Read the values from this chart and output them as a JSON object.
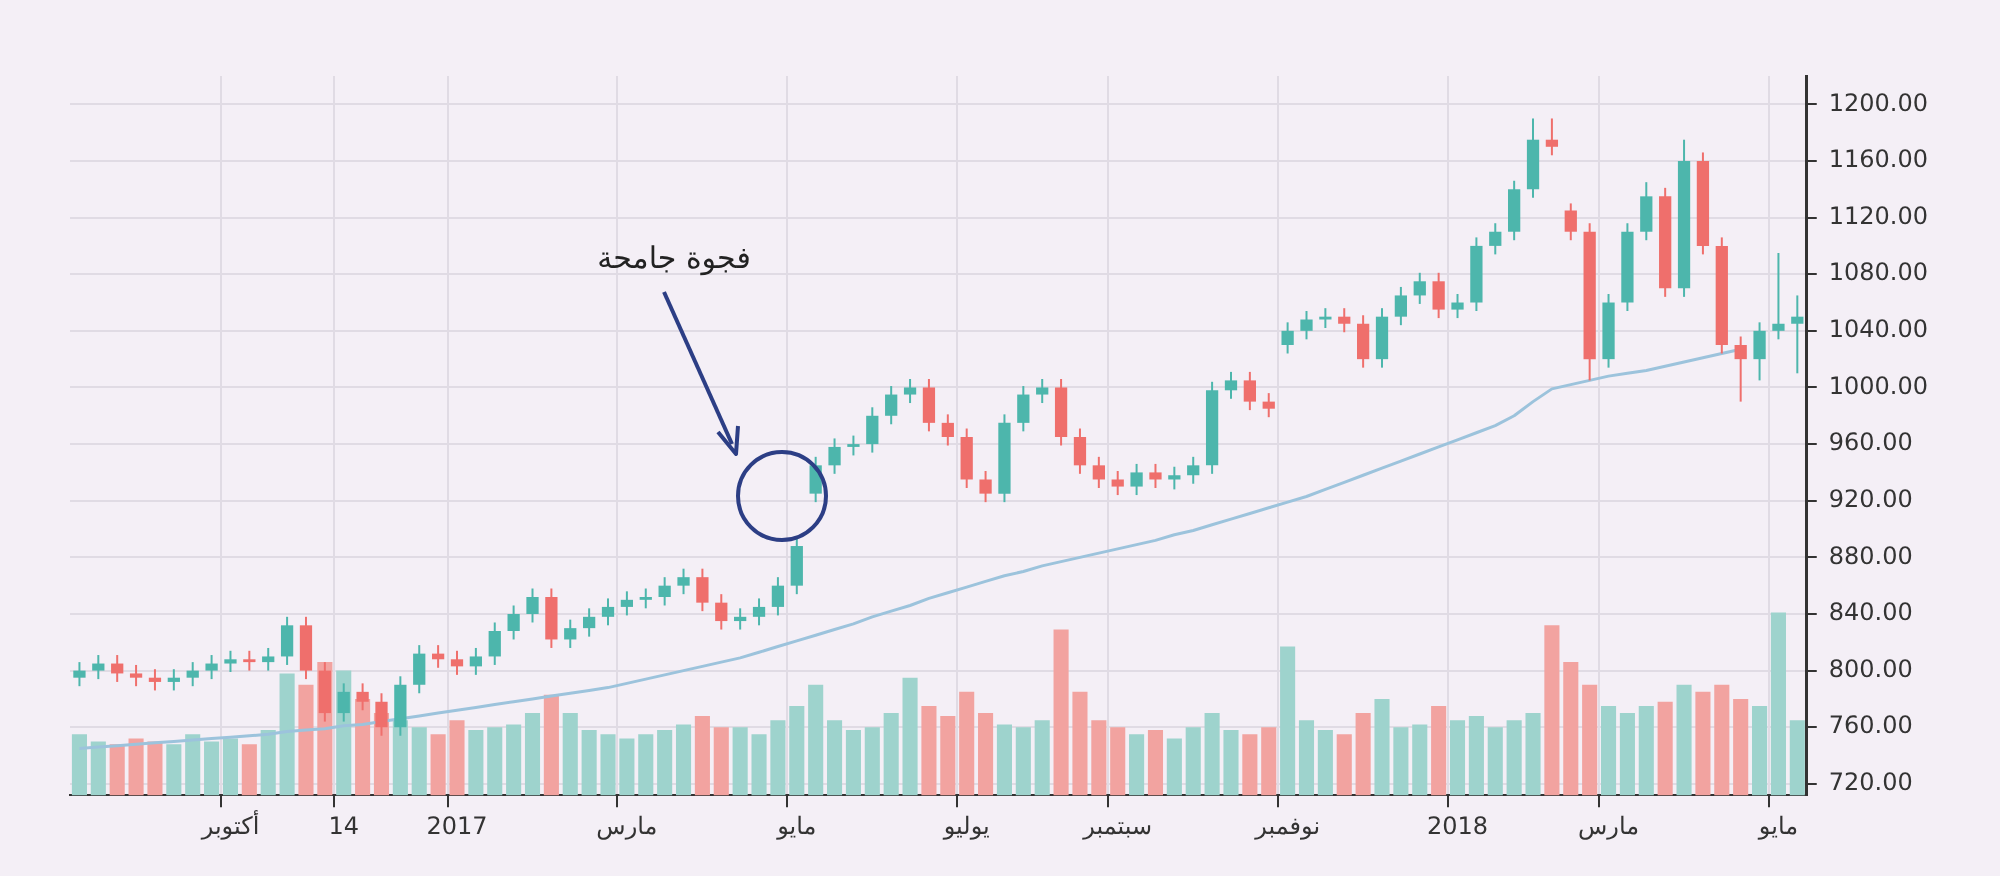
{
  "chart_data": {
    "type": "candlestick",
    "categories": [
      null,
      null,
      null,
      null,
      null,
      null,
      null,
      null,
      "أكتوبر",
      null,
      null,
      null,
      null,
      null,
      "14",
      null,
      null,
      null,
      null,
      null,
      "2017",
      null,
      null,
      null,
      null,
      null,
      null,
      null,
      null,
      "مارس",
      null,
      null,
      null,
      null,
      null,
      null,
      null,
      null,
      "مايو",
      null,
      null,
      null,
      null,
      null,
      null,
      null,
      null,
      "يوليو",
      null,
      null,
      null,
      null,
      null,
      null,
      null,
      "سبتمبر",
      null,
      null,
      null,
      null,
      null,
      null,
      null,
      null,
      "نوفمبر",
      null,
      null,
      null,
      null,
      null,
      null,
      null,
      null,
      "2018",
      null,
      null,
      null,
      null,
      null,
      null,
      null,
      "مارس",
      null,
      null,
      null,
      null,
      null,
      null,
      null,
      null,
      "مايو",
      null
    ],
    "ylim": [
      712,
      1220
    ],
    "yticks": [
      {
        "value": 720,
        "label": "720.00"
      },
      {
        "value": 760,
        "label": "760.00"
      },
      {
        "value": 800,
        "label": "800.00"
      },
      {
        "value": 840,
        "label": "840.00"
      },
      {
        "value": 880,
        "label": "880.00"
      },
      {
        "value": 920,
        "label": "920.00"
      },
      {
        "value": 960,
        "label": "960.00"
      },
      {
        "value": 1000,
        "label": "1000.00"
      },
      {
        "value": 1040,
        "label": "1040.00"
      },
      {
        "value": 1080,
        "label": "1080.00"
      },
      {
        "value": 1120,
        "label": "1120.00"
      },
      {
        "value": 1160,
        "label": "1160.00"
      },
      {
        "value": 1200,
        "label": "1200.00"
      }
    ],
    "grid": true,
    "legend": false,
    "annotations": [
      "فجوة جامحة"
    ],
    "series": [
      {
        "type": "bar",
        "colors": [
          "#9ed3cd",
          "#9ed3cd",
          "#f2a3a0",
          "#f2a3a0",
          "#f2a3a0",
          "#9ed3cd",
          "#9ed3cd",
          "#9ed3cd",
          "#9ed3cd",
          "#f2a3a0",
          "#9ed3cd",
          "#9ed3cd",
          "#f2a3a0",
          "#f2a3a0",
          "#9ed3cd",
          "#f2a3a0",
          "#f2a3a0",
          "#9ed3cd",
          "#9ed3cd",
          "#f2a3a0",
          "#f2a3a0",
          "#9ed3cd",
          "#9ed3cd",
          "#9ed3cd",
          "#9ed3cd",
          "#f2a3a0",
          "#9ed3cd",
          "#9ed3cd",
          "#9ed3cd",
          "#9ed3cd",
          "#9ed3cd",
          "#9ed3cd",
          "#9ed3cd",
          "#f2a3a0",
          "#f2a3a0",
          "#9ed3cd",
          "#9ed3cd",
          "#9ed3cd",
          "#9ed3cd",
          "#9ed3cd",
          "#9ed3cd",
          "#9ed3cd",
          "#9ed3cd",
          "#9ed3cd",
          "#9ed3cd",
          "#f2a3a0",
          "#f2a3a0",
          "#f2a3a0",
          "#f2a3a0",
          "#9ed3cd",
          "#9ed3cd",
          "#9ed3cd",
          "#f2a3a0",
          "#f2a3a0",
          "#f2a3a0",
          "#f2a3a0",
          "#9ed3cd",
          "#f2a3a0",
          "#9ed3cd",
          "#9ed3cd",
          "#9ed3cd",
          "#9ed3cd",
          "#f2a3a0",
          "#f2a3a0",
          "#9ed3cd",
          "#9ed3cd",
          "#9ed3cd",
          "#f2a3a0",
          "#f2a3a0",
          "#9ed3cd",
          "#9ed3cd",
          "#9ed3cd",
          "#f2a3a0",
          "#9ed3cd",
          "#9ed3cd",
          "#9ed3cd",
          "#9ed3cd",
          "#9ed3cd",
          "#f2a3a0",
          "#f2a3a0",
          "#f2a3a0",
          "#9ed3cd",
          "#9ed3cd",
          "#9ed3cd",
          "#f2a3a0",
          "#9ed3cd",
          "#f2a3a0",
          "#f2a3a0",
          "#f2a3a0",
          "#9ed3cd",
          "#9ed3cd",
          "#9ed3cd"
        ],
        "values": [
          755,
          750,
          748,
          752,
          750,
          748,
          755,
          750,
          752,
          748,
          758,
          798,
          790,
          806,
          800,
          780,
          770,
          765,
          760,
          755,
          765,
          758,
          760,
          762,
          770,
          783,
          770,
          758,
          755,
          752,
          755,
          758,
          762,
          768,
          760,
          760,
          755,
          765,
          775,
          790,
          765,
          758,
          760,
          770,
          795,
          775,
          768,
          785,
          770,
          762,
          760,
          765,
          829,
          785,
          765,
          760,
          755,
          758,
          752,
          760,
          770,
          758,
          755,
          760,
          817,
          765,
          758,
          755,
          770,
          780,
          760,
          762,
          775,
          765,
          768,
          760,
          765,
          770,
          832,
          806,
          790,
          775,
          770,
          775,
          778,
          790,
          785,
          790,
          780,
          775,
          841,
          765
        ]
      },
      {
        "type": "line",
        "color": "#9cc3dc",
        "values": [
          745,
          746,
          747,
          748,
          749,
          750,
          751,
          752,
          753,
          754,
          755,
          757,
          758,
          759,
          761,
          762,
          764,
          766,
          768,
          770,
          772,
          774,
          776,
          778,
          780,
          782,
          784,
          786,
          788,
          791,
          794,
          797,
          800,
          803,
          806,
          809,
          813,
          817,
          821,
          825,
          829,
          833,
          838,
          842,
          846,
          851,
          855,
          859,
          863,
          867,
          870,
          874,
          877,
          880,
          883,
          886,
          889,
          892,
          896,
          899,
          903,
          907,
          911,
          915,
          919,
          923,
          928,
          933,
          938,
          943,
          948,
          953,
          958,
          963,
          968,
          973,
          980,
          990,
          999,
          1002,
          1005,
          1008,
          1010,
          1012,
          1015,
          1018,
          1021,
          1024,
          1027,
          null,
          null,
          null
        ]
      },
      {
        "type": "candlestick",
        "colors": [
          "#4db6ac",
          "#4db6ac",
          "#ef6f6c",
          "#ef6f6c",
          "#ef6f6c",
          "#4db6ac",
          "#4db6ac",
          "#4db6ac",
          "#4db6ac",
          "#ef6f6c",
          "#4db6ac",
          "#4db6ac",
          "#ef6f6c",
          "#ef6f6c",
          "#4db6ac",
          "#ef6f6c",
          "#ef6f6c",
          "#4db6ac",
          "#4db6ac",
          "#ef6f6c",
          "#ef6f6c",
          "#4db6ac",
          "#4db6ac",
          "#4db6ac",
          "#4db6ac",
          "#ef6f6c",
          "#4db6ac",
          "#4db6ac",
          "#4db6ac",
          "#4db6ac",
          "#4db6ac",
          "#4db6ac",
          "#4db6ac",
          "#ef6f6c",
          "#ef6f6c",
          "#4db6ac",
          "#4db6ac",
          "#4db6ac",
          "#4db6ac",
          "#4db6ac",
          "#4db6ac",
          "#4db6ac",
          "#4db6ac",
          "#4db6ac",
          "#4db6ac",
          "#ef6f6c",
          "#ef6f6c",
          "#ef6f6c",
          "#ef6f6c",
          "#4db6ac",
          "#4db6ac",
          "#4db6ac",
          "#ef6f6c",
          "#ef6f6c",
          "#ef6f6c",
          "#ef6f6c",
          "#4db6ac",
          "#ef6f6c",
          "#4db6ac",
          "#4db6ac",
          "#4db6ac",
          "#4db6ac",
          "#ef6f6c",
          "#ef6f6c",
          "#4db6ac",
          "#4db6ac",
          "#4db6ac",
          "#ef6f6c",
          "#ef6f6c",
          "#4db6ac",
          "#4db6ac",
          "#4db6ac",
          "#ef6f6c",
          "#4db6ac",
          "#4db6ac",
          "#4db6ac",
          "#4db6ac",
          "#4db6ac",
          "#ef6f6c",
          "#ef6f6c",
          "#ef6f6c",
          "#4db6ac",
          "#4db6ac",
          "#4db6ac",
          "#ef6f6c",
          "#4db6ac",
          "#ef6f6c",
          "#ef6f6c",
          "#ef6f6c",
          "#4db6ac",
          "#4db6ac",
          "#4db6ac"
        ],
        "ohlc": [
          [
            795,
            806,
            789,
            800
          ],
          [
            800,
            811,
            794,
            805
          ],
          [
            805,
            811,
            792,
            798
          ],
          [
            798,
            804,
            789,
            795
          ],
          [
            795,
            801,
            786,
            792
          ],
          [
            792,
            801,
            786,
            795
          ],
          [
            795,
            806,
            789,
            800
          ],
          [
            800,
            811,
            794,
            805
          ],
          [
            805,
            814,
            799,
            808
          ],
          [
            808,
            814,
            800,
            806
          ],
          [
            806,
            816,
            800,
            810
          ],
          [
            810,
            838,
            804,
            832
          ],
          [
            832,
            838,
            794,
            800
          ],
          [
            800,
            806,
            764,
            770
          ],
          [
            770,
            791,
            764,
            785
          ],
          [
            785,
            791,
            772,
            778
          ],
          [
            778,
            784,
            754,
            760
          ],
          [
            760,
            796,
            754,
            790
          ],
          [
            790,
            818,
            784,
            812
          ],
          [
            812,
            818,
            802,
            808
          ],
          [
            808,
            814,
            797,
            803
          ],
          [
            803,
            816,
            797,
            810
          ],
          [
            810,
            834,
            804,
            828
          ],
          [
            828,
            846,
            822,
            840
          ],
          [
            840,
            858,
            834,
            852
          ],
          [
            852,
            858,
            816,
            822
          ],
          [
            822,
            836,
            816,
            830
          ],
          [
            830,
            844,
            824,
            838
          ],
          [
            838,
            851,
            832,
            845
          ],
          [
            845,
            856,
            839,
            850
          ],
          [
            850,
            858,
            844,
            852
          ],
          [
            852,
            866,
            846,
            860
          ],
          [
            860,
            872,
            854,
            866
          ],
          [
            866,
            872,
            842,
            848
          ],
          [
            848,
            854,
            829,
            835
          ],
          [
            835,
            844,
            829,
            838
          ],
          [
            838,
            851,
            832,
            845
          ],
          [
            845,
            866,
            839,
            860
          ],
          [
            860,
            894,
            854,
            888
          ],
          [
            925,
            951,
            919,
            945
          ],
          [
            945,
            964,
            939,
            958
          ],
          [
            958,
            966,
            952,
            960
          ],
          [
            960,
            986,
            954,
            980
          ],
          [
            980,
            1001,
            974,
            995
          ],
          [
            995,
            1006,
            989,
            1000
          ],
          [
            1000,
            1006,
            969,
            975
          ],
          [
            975,
            981,
            959,
            965
          ],
          [
            965,
            971,
            929,
            935
          ],
          [
            935,
            941,
            919,
            925
          ],
          [
            925,
            981,
            919,
            975
          ],
          [
            975,
            1001,
            969,
            995
          ],
          [
            995,
            1006,
            989,
            1000
          ],
          [
            1000,
            1006,
            959,
            965
          ],
          [
            965,
            971,
            939,
            945
          ],
          [
            945,
            951,
            929,
            935
          ],
          [
            935,
            941,
            924,
            930
          ],
          [
            930,
            946,
            924,
            940
          ],
          [
            940,
            946,
            929,
            935
          ],
          [
            935,
            944,
            928,
            938
          ],
          [
            938,
            951,
            932,
            945
          ],
          [
            945,
            1004,
            939,
            998
          ],
          [
            998,
            1011,
            992,
            1005
          ],
          [
            1005,
            1011,
            984,
            990
          ],
          [
            990,
            996,
            979,
            985
          ],
          [
            1030,
            1046,
            1024,
            1040
          ],
          [
            1040,
            1054,
            1034,
            1048
          ],
          [
            1048,
            1056,
            1042,
            1050
          ],
          [
            1050,
            1056,
            1039,
            1045
          ],
          [
            1045,
            1051,
            1014,
            1020
          ],
          [
            1020,
            1056,
            1014,
            1050
          ],
          [
            1050,
            1071,
            1044,
            1065
          ],
          [
            1065,
            1081,
            1059,
            1075
          ],
          [
            1075,
            1081,
            1049,
            1055
          ],
          [
            1055,
            1066,
            1049,
            1060
          ],
          [
            1060,
            1106,
            1054,
            1100
          ],
          [
            1100,
            1116,
            1094,
            1110
          ],
          [
            1110,
            1146,
            1104,
            1140
          ],
          [
            1140,
            1190,
            1134,
            1175
          ],
          [
            1175,
            1190,
            1164,
            1170
          ],
          [
            1125,
            1130,
            1104,
            1110
          ],
          [
            1110,
            1116,
            1005,
            1020
          ],
          [
            1020,
            1066,
            1014,
            1060
          ],
          [
            1060,
            1116,
            1054,
            1110
          ],
          [
            1110,
            1145,
            1104,
            1135
          ],
          [
            1135,
            1141,
            1064,
            1070
          ],
          [
            1070,
            1175,
            1064,
            1160
          ],
          [
            1160,
            1166,
            1094,
            1100
          ],
          [
            1100,
            1106,
            1024,
            1030
          ],
          [
            1030,
            1036,
            990,
            1020
          ],
          [
            1020,
            1046,
            1005,
            1040
          ],
          [
            1040,
            1095,
            1034,
            1045
          ],
          [
            1045,
            1065,
            1010,
            1050
          ]
        ]
      }
    ]
  }
}
